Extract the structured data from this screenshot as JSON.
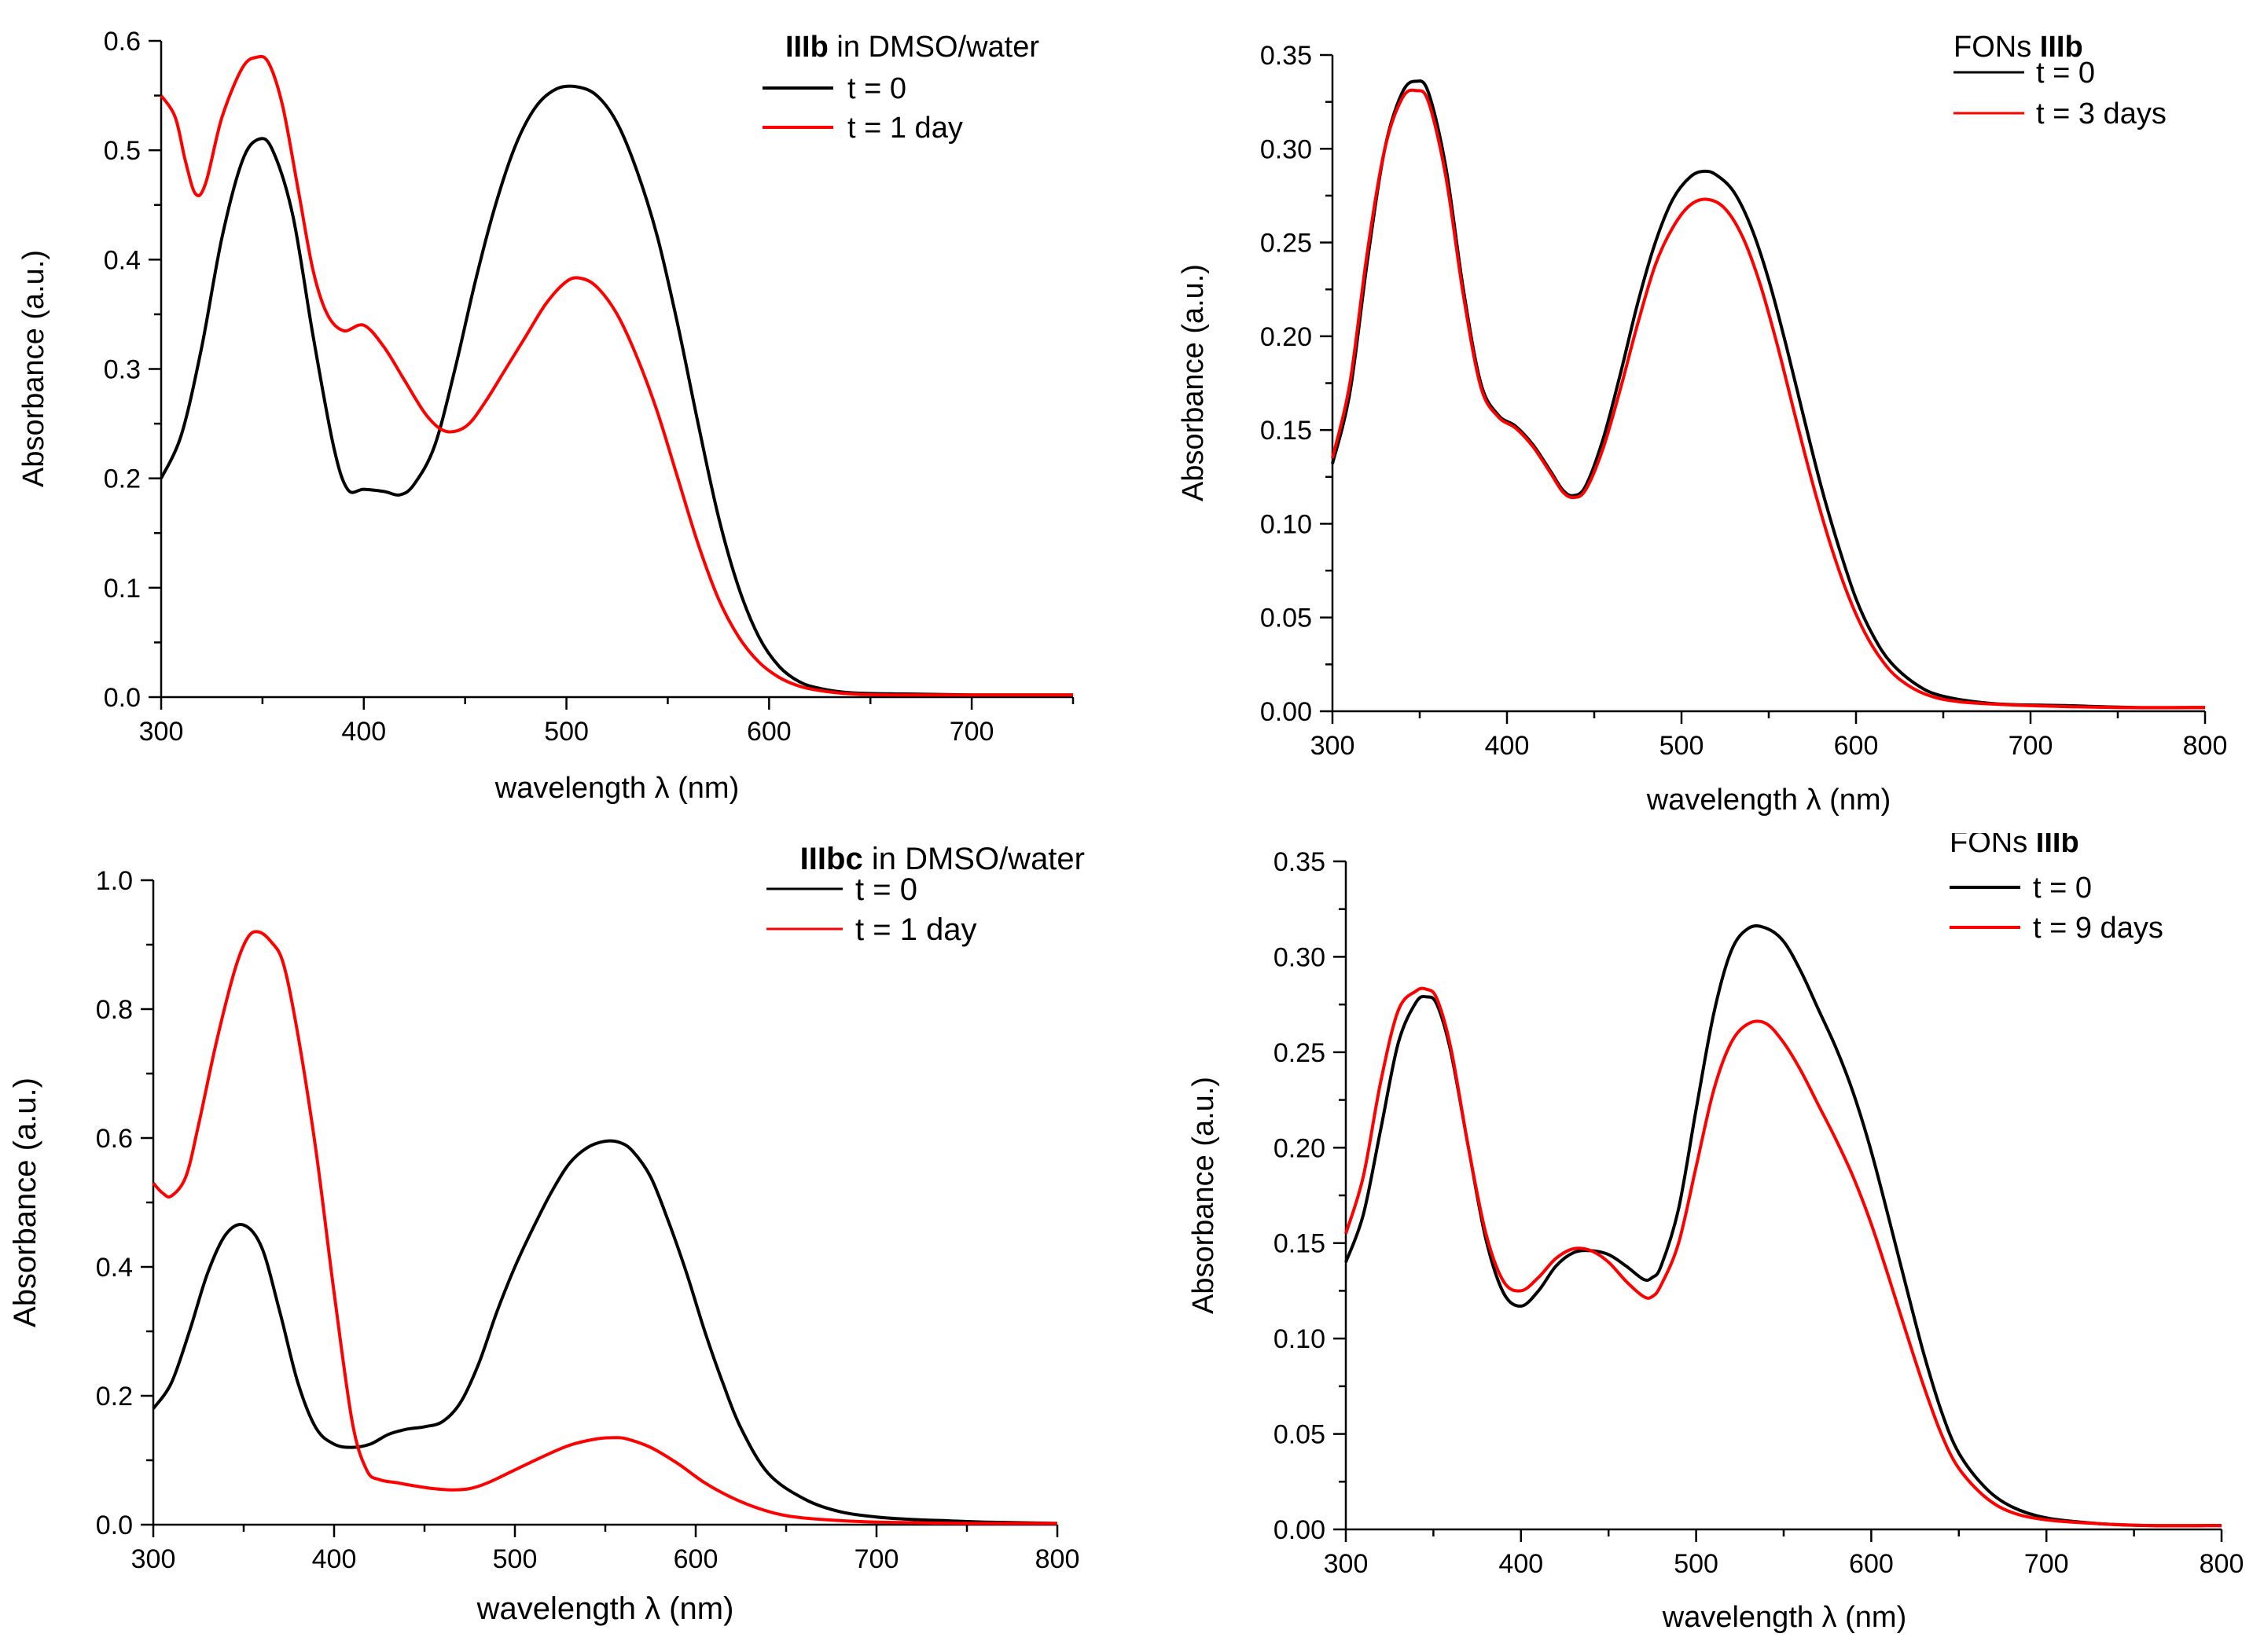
{
  "chart_data": [
    {
      "type": "line",
      "title_bold": "IIIb",
      "title_rest": " in DMSO/water",
      "xlabel": "wavelength λ (nm)",
      "ylabel": "Absorbance (a.u.)",
      "xlim": [
        300,
        750
      ],
      "ylim": [
        0,
        0.6
      ],
      "xticks": [
        300,
        400,
        500,
        600,
        700
      ],
      "xtick_labels": [
        "300",
        "400",
        "500",
        "600",
        "700"
      ],
      "yticks": [
        0,
        0.1,
        0.2,
        0.3,
        0.4,
        0.5,
        0.6
      ],
      "ytick_labels": [
        "0.0",
        "0.1",
        "0.2",
        "0.3",
        "0.4",
        "0.5",
        "0.6"
      ],
      "legend_position": "top-right",
      "series": [
        {
          "name": "t = 0",
          "color": "#000000",
          "x": [
            300,
            310,
            320,
            330,
            340,
            348,
            355,
            365,
            375,
            385,
            392,
            400,
            410,
            418,
            425,
            435,
            445,
            455,
            465,
            475,
            485,
            495,
            505,
            515,
            525,
            535,
            545,
            555,
            565,
            575,
            585,
            595,
            605,
            615,
            625,
            640,
            660,
            700,
            750
          ],
          "y": [
            0.2,
            0.24,
            0.32,
            0.42,
            0.49,
            0.51,
            0.5,
            0.44,
            0.33,
            0.23,
            0.19,
            0.19,
            0.188,
            0.185,
            0.195,
            0.23,
            0.3,
            0.38,
            0.45,
            0.505,
            0.54,
            0.556,
            0.558,
            0.55,
            0.525,
            0.48,
            0.42,
            0.34,
            0.25,
            0.165,
            0.1,
            0.055,
            0.028,
            0.014,
            0.008,
            0.004,
            0.003,
            0.002,
            0.002
          ]
        },
        {
          "name": "t = 1 day",
          "color": "#ff0000",
          "x": [
            300,
            307,
            312,
            317,
            322,
            330,
            340,
            347,
            353,
            360,
            368,
            375,
            382,
            390,
            400,
            410,
            420,
            430,
            438,
            445,
            452,
            460,
            470,
            480,
            490,
            500,
            507,
            515,
            525,
            535,
            545,
            555,
            565,
            575,
            585,
            595,
            605,
            615,
            625,
            640,
            660,
            700,
            750
          ],
          "y": [
            0.55,
            0.53,
            0.49,
            0.46,
            0.47,
            0.53,
            0.575,
            0.585,
            0.58,
            0.54,
            0.46,
            0.39,
            0.35,
            0.335,
            0.34,
            0.32,
            0.29,
            0.26,
            0.245,
            0.243,
            0.25,
            0.27,
            0.3,
            0.33,
            0.36,
            0.38,
            0.383,
            0.375,
            0.35,
            0.31,
            0.26,
            0.2,
            0.14,
            0.09,
            0.055,
            0.032,
            0.018,
            0.01,
            0.006,
            0.003,
            0.002,
            0.002,
            0.002
          ]
        }
      ]
    },
    {
      "type": "line",
      "title_bold": "IIIb",
      "title_rest": "FONs ",
      "xlabel": "wavelength λ (nm)",
      "ylabel": "Absorbance (a.u.)",
      "xlim": [
        300,
        800
      ],
      "ylim": [
        0,
        0.35
      ],
      "xticks": [
        300,
        400,
        500,
        600,
        700,
        800
      ],
      "xtick_labels": [
        "300",
        "400",
        "500",
        "600",
        "700",
        "800"
      ],
      "yticks": [
        0,
        0.05,
        0.1,
        0.15,
        0.2,
        0.25,
        0.3,
        0.35
      ],
      "ytick_labels": [
        "0.00",
        "0.05",
        "0.10",
        "0.15",
        "0.20",
        "0.25",
        "0.30",
        "0.35"
      ],
      "legend_position": "top-right",
      "series": [
        {
          "name": "t = 0",
          "color": "#000000",
          "x": [
            300,
            310,
            320,
            330,
            340,
            348,
            355,
            365,
            375,
            385,
            395,
            405,
            415,
            425,
            432,
            438,
            445,
            455,
            465,
            475,
            485,
            495,
            505,
            513,
            520,
            530,
            540,
            550,
            560,
            570,
            580,
            590,
            600,
            610,
            620,
            635,
            650,
            680,
            720,
            760,
            800
          ],
          "y": [
            0.132,
            0.17,
            0.24,
            0.3,
            0.33,
            0.336,
            0.33,
            0.29,
            0.225,
            0.175,
            0.158,
            0.152,
            0.142,
            0.128,
            0.118,
            0.115,
            0.12,
            0.145,
            0.18,
            0.218,
            0.25,
            0.273,
            0.285,
            0.288,
            0.286,
            0.277,
            0.258,
            0.23,
            0.195,
            0.157,
            0.12,
            0.088,
            0.06,
            0.04,
            0.026,
            0.014,
            0.008,
            0.004,
            0.003,
            0.002,
            0.002
          ]
        },
        {
          "name": "t = 3 days",
          "color": "#ff0000",
          "x": [
            300,
            310,
            320,
            330,
            340,
            348,
            355,
            365,
            375,
            385,
            395,
            405,
            415,
            425,
            432,
            438,
            445,
            455,
            465,
            475,
            485,
            495,
            505,
            515,
            525,
            535,
            545,
            555,
            565,
            575,
            585,
            595,
            605,
            615,
            625,
            640,
            660,
            700,
            750,
            800
          ],
          "y": [
            0.135,
            0.175,
            0.245,
            0.3,
            0.327,
            0.331,
            0.325,
            0.285,
            0.222,
            0.173,
            0.157,
            0.151,
            0.141,
            0.127,
            0.117,
            0.114,
            0.118,
            0.14,
            0.172,
            0.207,
            0.238,
            0.258,
            0.27,
            0.273,
            0.268,
            0.253,
            0.228,
            0.195,
            0.158,
            0.122,
            0.09,
            0.063,
            0.042,
            0.027,
            0.017,
            0.009,
            0.005,
            0.003,
            0.002,
            0.002
          ]
        }
      ]
    },
    {
      "type": "line",
      "title_bold": "IIIbc",
      "title_rest": " in DMSO/water",
      "xlabel": "wavelength λ (nm)",
      "ylabel": "Absorbance (a.u.)",
      "xlim": [
        300,
        800
      ],
      "ylim": [
        0,
        1.0
      ],
      "xticks": [
        300,
        400,
        500,
        600,
        700,
        800
      ],
      "xtick_labels": [
        "300",
        "400",
        "500",
        "600",
        "700",
        "800"
      ],
      "yticks": [
        0,
        0.2,
        0.4,
        0.6,
        0.8,
        1.0
      ],
      "ytick_labels": [
        "0.0",
        "0.2",
        "0.4",
        "0.6",
        "0.8",
        "1.0"
      ],
      "legend_position": "top-right",
      "series": [
        {
          "name": "t = 0",
          "color": "#000000",
          "x": [
            300,
            310,
            320,
            330,
            340,
            350,
            360,
            370,
            380,
            390,
            400,
            410,
            420,
            430,
            440,
            450,
            460,
            470,
            480,
            490,
            500,
            510,
            520,
            530,
            540,
            550,
            558,
            565,
            575,
            585,
            595,
            605,
            615,
            625,
            640,
            660,
            680,
            700,
            720,
            740,
            760,
            800
          ],
          "y": [
            0.18,
            0.22,
            0.3,
            0.39,
            0.45,
            0.465,
            0.43,
            0.33,
            0.22,
            0.15,
            0.125,
            0.12,
            0.125,
            0.14,
            0.148,
            0.152,
            0.16,
            0.19,
            0.25,
            0.33,
            0.4,
            0.46,
            0.515,
            0.56,
            0.585,
            0.595,
            0.593,
            0.58,
            0.54,
            0.47,
            0.39,
            0.3,
            0.22,
            0.15,
            0.08,
            0.04,
            0.02,
            0.012,
            0.008,
            0.006,
            0.004,
            0.002
          ]
        },
        {
          "name": "t = 1 day",
          "color": "#ff0000",
          "x": [
            300,
            305,
            310,
            318,
            325,
            335,
            345,
            352,
            358,
            365,
            372,
            380,
            390,
            400,
            410,
            418,
            425,
            435,
            445,
            455,
            465,
            475,
            485,
            500,
            515,
            530,
            545,
            555,
            562,
            575,
            590,
            605,
            620,
            635,
            650,
            670,
            700,
            750,
            800
          ],
          "y": [
            0.53,
            0.515,
            0.51,
            0.54,
            0.62,
            0.75,
            0.86,
            0.91,
            0.92,
            0.905,
            0.87,
            0.76,
            0.58,
            0.36,
            0.16,
            0.085,
            0.07,
            0.065,
            0.06,
            0.056,
            0.054,
            0.056,
            0.065,
            0.085,
            0.105,
            0.123,
            0.133,
            0.135,
            0.133,
            0.12,
            0.095,
            0.065,
            0.042,
            0.025,
            0.014,
            0.008,
            0.004,
            0.002,
            0.002
          ]
        }
      ]
    },
    {
      "type": "line",
      "title_bold": "IIIb",
      "title_rest": "FONs ",
      "xlabel": "wavelength λ (nm)",
      "ylabel": "Absorbance (a.u.)",
      "xlim": [
        300,
        800
      ],
      "ylim": [
        0,
        0.35
      ],
      "xticks": [
        300,
        400,
        500,
        600,
        700,
        800
      ],
      "xtick_labels": [
        "300",
        "400",
        "500",
        "600",
        "700",
        "800"
      ],
      "yticks": [
        0,
        0.05,
        0.1,
        0.15,
        0.2,
        0.25,
        0.3,
        0.35
      ],
      "ytick_labels": [
        "0.00",
        "0.05",
        "0.10",
        "0.15",
        "0.20",
        "0.25",
        "0.30",
        "0.35"
      ],
      "legend_position": "top-right",
      "series": [
        {
          "name": "t = 0",
          "color": "#000000",
          "x": [
            300,
            310,
            320,
            330,
            340,
            346,
            352,
            360,
            370,
            380,
            390,
            400,
            410,
            420,
            430,
            440,
            450,
            460,
            470,
            475,
            480,
            490,
            500,
            510,
            520,
            530,
            540,
            550,
            560,
            570,
            580,
            590,
            600,
            610,
            620,
            630,
            640,
            650,
            665,
            680,
            700,
            730,
            760,
            800
          ],
          "y": [
            0.14,
            0.165,
            0.21,
            0.255,
            0.276,
            0.279,
            0.275,
            0.25,
            0.2,
            0.152,
            0.124,
            0.117,
            0.125,
            0.138,
            0.145,
            0.146,
            0.144,
            0.138,
            0.131,
            0.132,
            0.138,
            0.168,
            0.22,
            0.27,
            0.303,
            0.315,
            0.315,
            0.308,
            0.292,
            0.272,
            0.252,
            0.228,
            0.198,
            0.163,
            0.127,
            0.092,
            0.062,
            0.04,
            0.022,
            0.012,
            0.006,
            0.003,
            0.002,
            0.002
          ]
        },
        {
          "name": "t = 9 days",
          "color": "#ff0000",
          "x": [
            300,
            310,
            320,
            330,
            340,
            346,
            352,
            360,
            370,
            380,
            390,
            400,
            410,
            420,
            430,
            440,
            450,
            460,
            470,
            475,
            480,
            490,
            500,
            510,
            520,
            530,
            540,
            550,
            560,
            570,
            580,
            590,
            600,
            610,
            620,
            630,
            640,
            650,
            665,
            680,
            700,
            730,
            760,
            800
          ],
          "y": [
            0.155,
            0.185,
            0.235,
            0.272,
            0.282,
            0.283,
            0.278,
            0.252,
            0.2,
            0.155,
            0.13,
            0.125,
            0.132,
            0.142,
            0.147,
            0.146,
            0.14,
            0.13,
            0.122,
            0.122,
            0.128,
            0.15,
            0.19,
            0.23,
            0.255,
            0.265,
            0.265,
            0.255,
            0.24,
            0.222,
            0.204,
            0.184,
            0.16,
            0.132,
            0.103,
            0.075,
            0.05,
            0.032,
            0.017,
            0.009,
            0.005,
            0.003,
            0.002,
            0.002
          ]
        }
      ]
    }
  ]
}
